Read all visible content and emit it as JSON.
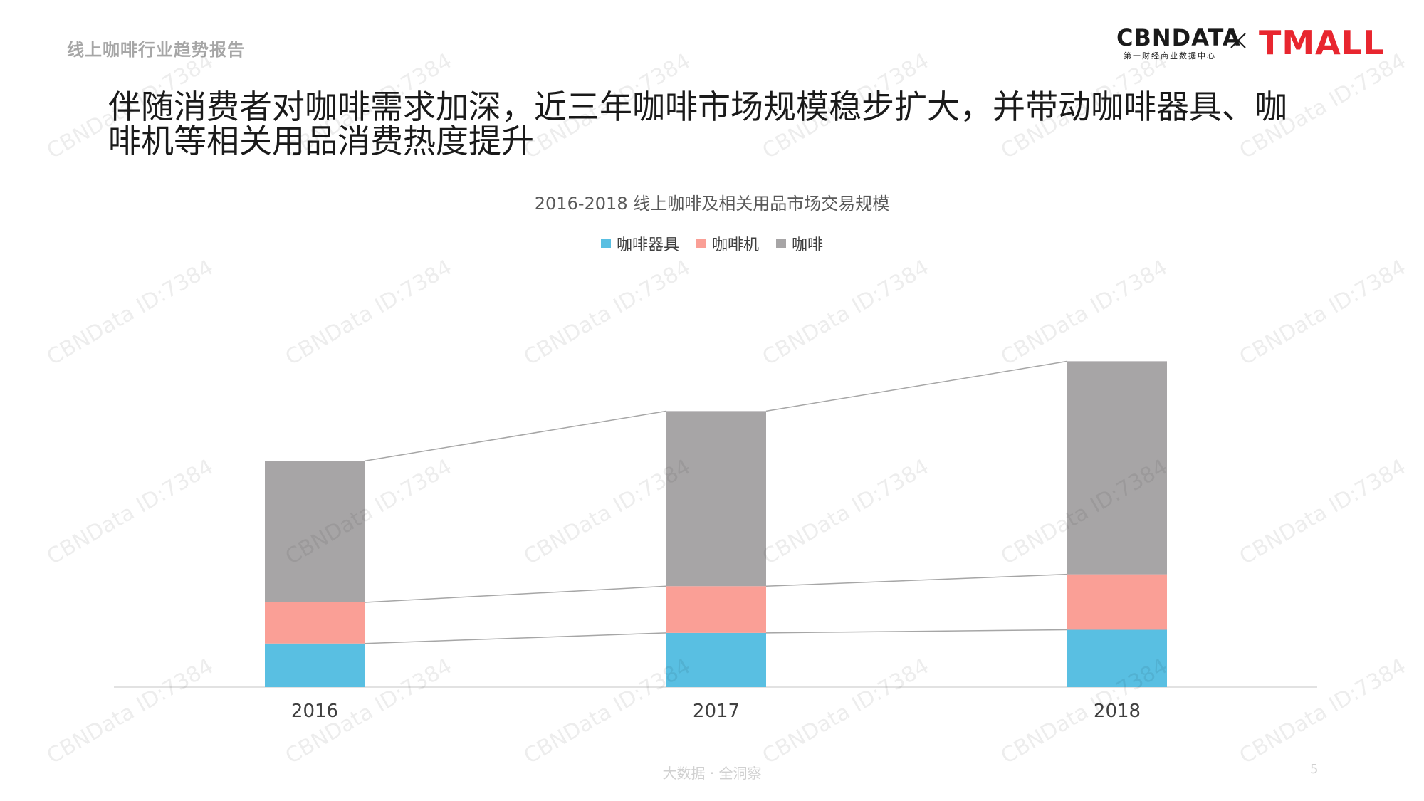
{
  "report_name": "线上咖啡行业趋势报告",
  "logo": {
    "cbn_word": "CBNDATA",
    "cbn_sub": "第一财经商业数据中心",
    "tmall_word": "TMALL"
  },
  "headline": "伴随消费者对咖啡需求加深，近三年咖啡市场规模稳步扩大，并带动咖啡器具、咖啡机等相关用品消费热度提升",
  "watermark_text": "CBNData ID:7384",
  "footer": {
    "text": "大数据 · 全洞察",
    "page_number": "5"
  },
  "colors": {
    "equipment": "#59bfe2",
    "machine": "#fa9f96",
    "coffee": "#a7a5a6",
    "connector": "#a6a6a6",
    "baseline": "#d9d9d9",
    "tmall_red": "#e8262f"
  },
  "chart_data": {
    "type": "bar",
    "stacked": true,
    "title": "2016-2018 线上咖啡及相关用品市场交易规模",
    "categories": [
      "2016",
      "2017",
      "2018"
    ],
    "series": [
      {
        "name": "咖啡器具",
        "values": [
          7.0,
          8.7,
          9.2
        ]
      },
      {
        "name": "咖啡机",
        "values": [
          6.6,
          7.5,
          8.9
        ]
      },
      {
        "name": "咖啡",
        "values": [
          22.7,
          28.1,
          34.2
        ]
      }
    ],
    "ylim": [
      0,
      60
    ],
    "xlabel": "",
    "ylabel": "",
    "grid": false,
    "legend_position": "top",
    "value_note": "estimated in arbitrary units from relative bar heights; no axis labels shown"
  }
}
